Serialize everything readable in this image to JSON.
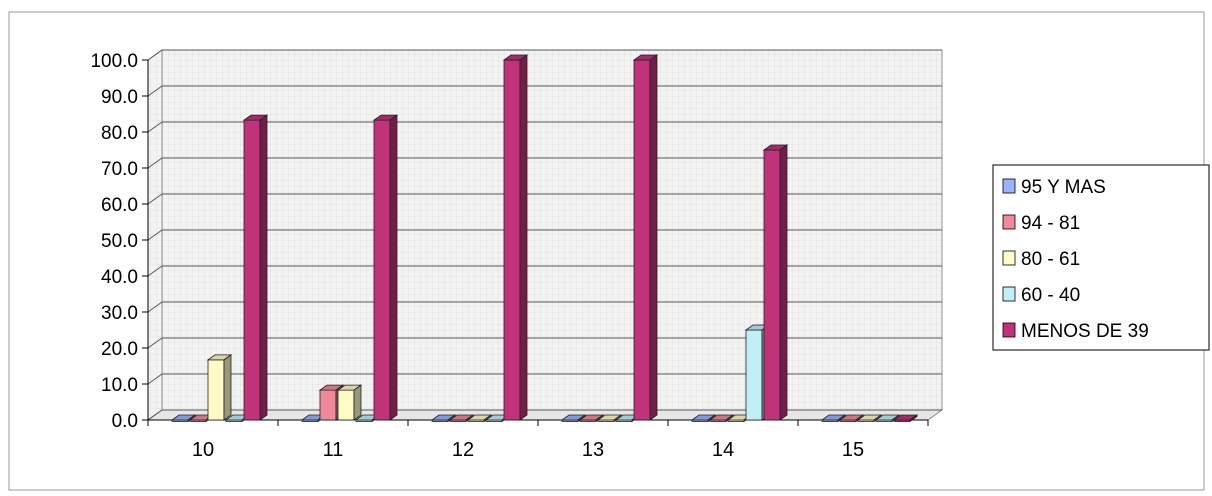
{
  "chart_data": {
    "type": "bar",
    "title": "",
    "xlabel": "",
    "ylabel": "",
    "categories": [
      "10",
      "11",
      "12",
      "13",
      "14",
      "15"
    ],
    "series": [
      {
        "name": "95 Y MAS",
        "values": [
          0,
          0,
          0,
          0,
          0,
          0
        ]
      },
      {
        "name": "94 - 81",
        "values": [
          0,
          8.3,
          0,
          0,
          0,
          0
        ]
      },
      {
        "name": "80 - 61",
        "values": [
          16.7,
          8.3,
          0,
          0,
          0,
          0
        ]
      },
      {
        "name": "60 - 40",
        "values": [
          0,
          0,
          0,
          0,
          25.0,
          0
        ]
      },
      {
        "name": "MENOS DE 39",
        "values": [
          83.3,
          83.3,
          100.0,
          100.0,
          75.0,
          0
        ]
      }
    ],
    "ylim": [
      0,
      100
    ],
    "yticks": [
      "0.0",
      "10.0",
      "20.0",
      "30.0",
      "40.0",
      "50.0",
      "60.0",
      "70.0",
      "80.0",
      "90.0",
      "100.0"
    ],
    "grid": true,
    "legend_position": "right",
    "colors": {
      "95 Y MAS": "#99b3ff",
      "94 - 81": "#f08a9a",
      "80 - 61": "#fffbc4",
      "60 - 40": "#c2eef8",
      "MENOS DE 39": "#c0327a"
    }
  }
}
